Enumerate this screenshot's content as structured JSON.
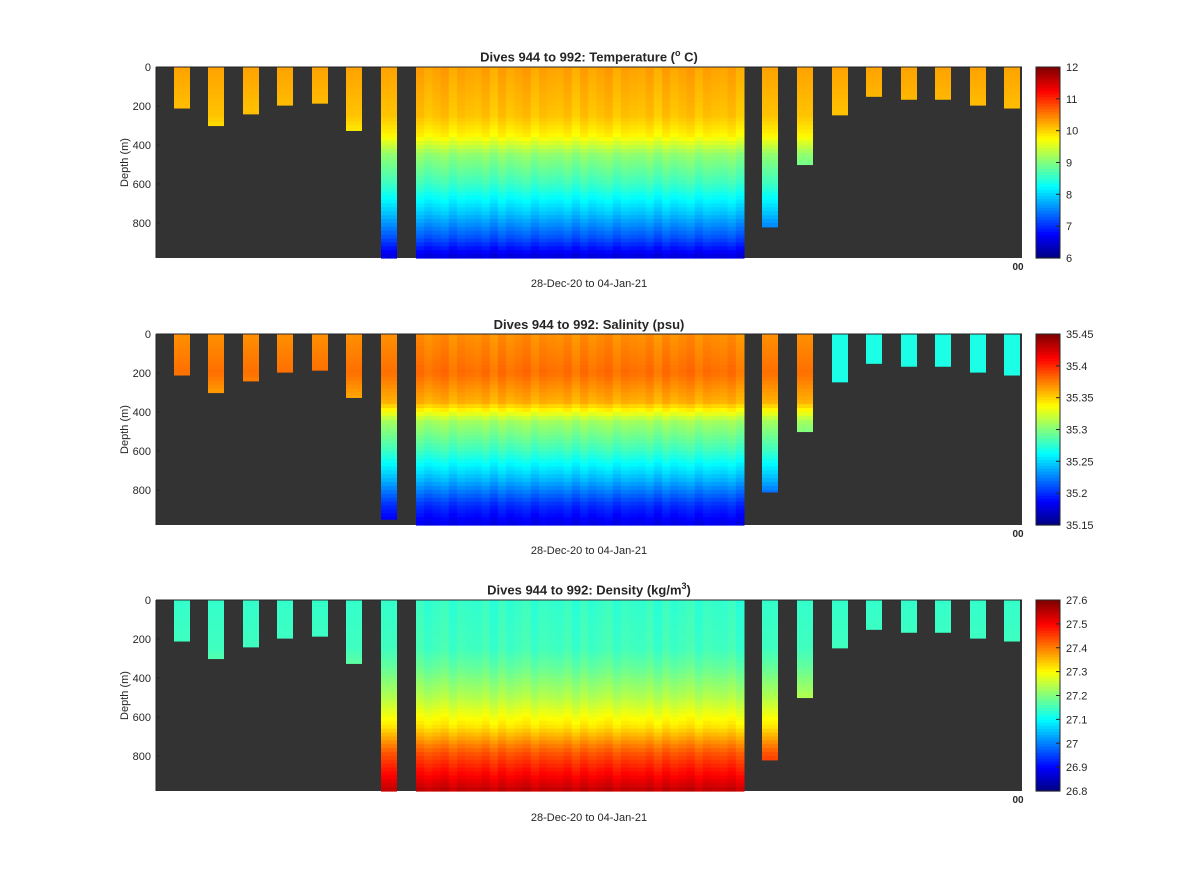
{
  "chart_data": [
    {
      "type": "heatmap",
      "variable": "temperature",
      "title_main": "Dives 944 to 992: Temperature (",
      "title_sup": "o",
      "title_tail": " C)",
      "xlabel": "28-Dec-20 to 04-Jan-21",
      "ylabel": "Depth (m)",
      "ylim": [
        0,
        980
      ],
      "yticks": [
        "0",
        "200",
        "400",
        "600",
        "800"
      ],
      "xtick_overlap": "00",
      "colorbar": {
        "min": 6,
        "max": 12,
        "ticks": [
          "6",
          "7",
          "8",
          "9",
          "10",
          "11",
          "12"
        ]
      },
      "background": "#333333",
      "profiles": {
        "shallow_left_depths": [
          210,
          300,
          240,
          195,
          185,
          325
        ],
        "isolated_deep_profile_depth": 980,
        "main_block": "continuous 0-980 m",
        "after_block_depths": [
          820,
          500
        ],
        "shallow_right_depths": [
          245,
          150,
          165,
          165,
          195,
          210
        ]
      },
      "profile_structure": [
        {
          "depth": 0,
          "value": 10.3
        },
        {
          "depth": 250,
          "value": 10.1
        },
        {
          "depth": 350,
          "value": 9.8
        },
        {
          "depth": 450,
          "value": 9.1
        },
        {
          "depth": 600,
          "value": 8.6
        },
        {
          "depth": 750,
          "value": 7.9
        },
        {
          "depth": 880,
          "value": 7.2
        },
        {
          "depth": 980,
          "value": 6.5
        }
      ]
    },
    {
      "type": "heatmap",
      "variable": "salinity",
      "title_main": "Dives 944 to 992: Salinity (psu)",
      "title_sup": "",
      "title_tail": "",
      "xlabel": "28-Dec-20 to 04-Jan-21",
      "ylabel": "Depth (m)",
      "ylim": [
        0,
        980
      ],
      "yticks": [
        "0",
        "200",
        "400",
        "600",
        "800"
      ],
      "xtick_overlap": "00",
      "colorbar": {
        "min": 35.15,
        "max": 35.45,
        "ticks": [
          "35.15",
          "35.2",
          "35.25",
          "35.3",
          "35.35",
          "35.4",
          "35.45"
        ]
      },
      "background": "#333333",
      "profiles": {
        "shallow_left_depths": [
          210,
          300,
          240,
          195,
          185,
          325
        ],
        "isolated_deep_profile_depth": 950,
        "main_block": "continuous 0-980 m",
        "after_block_depths": [
          810,
          500
        ],
        "shallow_right_depths": [
          245,
          150,
          165,
          165,
          195,
          210
        ]
      },
      "right_profiles_surface_value": 35.27,
      "profile_structure": [
        {
          "depth": 0,
          "value": 35.37
        },
        {
          "depth": 200,
          "value": 35.38
        },
        {
          "depth": 350,
          "value": 35.36
        },
        {
          "depth": 450,
          "value": 35.31
        },
        {
          "depth": 600,
          "value": 35.28
        },
        {
          "depth": 750,
          "value": 35.24
        },
        {
          "depth": 880,
          "value": 35.2
        },
        {
          "depth": 980,
          "value": 35.18
        }
      ]
    },
    {
      "type": "heatmap",
      "variable": "density",
      "title_main": "Dives 944 to 992: Density (kg/m",
      "title_sup": "3",
      "title_tail": ")",
      "xlabel": "28-Dec-20 to 04-Jan-21",
      "ylabel": "Depth (m)",
      "ylim": [
        0,
        980
      ],
      "yticks": [
        "0",
        "200",
        "400",
        "600",
        "800"
      ],
      "xtick_overlap": "00",
      "colorbar": {
        "min": 26.8,
        "max": 27.6,
        "ticks": [
          "26.8",
          "26.9",
          "27",
          "27.1",
          "27.2",
          "27.3",
          "27.4",
          "27.5",
          "27.6"
        ]
      },
      "background": "#333333",
      "profiles": {
        "shallow_left_depths": [
          210,
          300,
          240,
          195,
          185,
          325
        ],
        "isolated_deep_profile_depth": 980,
        "main_block": "continuous 0-980 m",
        "after_block_depths": [
          820,
          500
        ],
        "shallow_right_depths": [
          245,
          150,
          165,
          165,
          195,
          210
        ]
      },
      "profile_structure": [
        {
          "depth": 0,
          "value": 27.14
        },
        {
          "depth": 250,
          "value": 27.15
        },
        {
          "depth": 350,
          "value": 27.18
        },
        {
          "depth": 500,
          "value": 27.24
        },
        {
          "depth": 650,
          "value": 27.32
        },
        {
          "depth": 780,
          "value": 27.43
        },
        {
          "depth": 900,
          "value": 27.5
        },
        {
          "depth": 980,
          "value": 27.55
        }
      ]
    }
  ]
}
